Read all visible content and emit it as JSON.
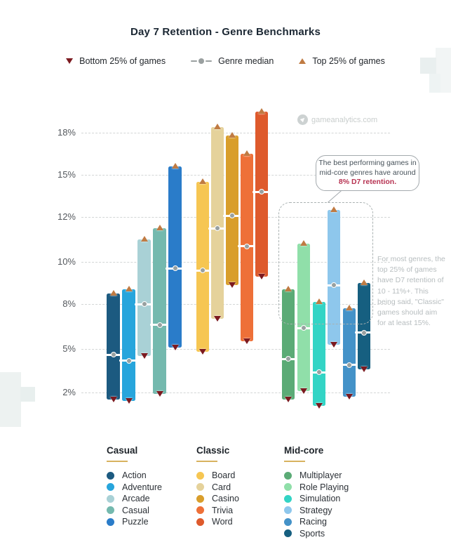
{
  "page": {
    "title": "Day 7 Retention - Genre Benchmarks"
  },
  "top_legend": {
    "bottom_label": "Bottom 25% of games",
    "median_label": "Genre median",
    "top_label": "Top 25% of games"
  },
  "watermark": {
    "text": "gameanalytics.com"
  },
  "callout": {
    "line1": "The best performing games in",
    "line2": "mid-core genres have around",
    "highlight": "8% D7 retention."
  },
  "side_note": {
    "text": "For most genres, the top 25% of games have D7 retention of 10 - 11%+. This being said, \"Classic\" games should aim for at least 15%."
  },
  "colors": {
    "top_marker": "#c07b43",
    "bottom_marker": "#7c1a20",
    "median_dot": "#98a0a0",
    "gridline": "#d3d6d6",
    "highlight_text": "#b73352",
    "legend_rule": "#d8b25f"
  },
  "chart_data": {
    "type": "bar",
    "subtype": "floating-range-bars (bottom 25% / median / top 25%)",
    "title": "Day 7 Retention - Genre Benchmarks",
    "xlabel": "",
    "ylabel": "",
    "y_axis": {
      "tick_labels": [
        "18%",
        "15%",
        "12%",
        "10%",
        "8%",
        "5%",
        "2%"
      ],
      "tick_values": [
        18,
        15,
        12,
        10,
        8,
        5,
        2
      ],
      "unit": "%",
      "grid": "dashed",
      "scale_note": "ticks evenly spaced as drawn (non-linear value spacing)"
    },
    "metrics": [
      "bottom25",
      "median",
      "top25"
    ],
    "legend_markers": {
      "bottom25": "dark-red triangle-down",
      "median": "white line with gray dot",
      "top25": "tan triangle-up"
    },
    "groups": [
      {
        "name": "Casual",
        "genres": [
          {
            "label": "Action",
            "color": "#1c5a80",
            "bottom25": 1.5,
            "median": 4.6,
            "top25": 8.5
          },
          {
            "label": "Adventure",
            "color": "#27a5dc",
            "bottom25": 1.4,
            "median": 4.2,
            "top25": 8.7
          },
          {
            "label": "Arcade",
            "color": "#a9d1d6",
            "bottom25": 4.5,
            "median": 8.0,
            "top25": 11.0
          },
          {
            "label": "Casual",
            "color": "#74b9ae",
            "bottom25": 1.9,
            "median": 6.6,
            "top25": 11.5
          },
          {
            "label": "Puzzle",
            "color": "#2a7cc9",
            "bottom25": 5.1,
            "median": 9.7,
            "top25": 15.6
          }
        ]
      },
      {
        "name": "Classic",
        "genres": [
          {
            "label": "Board",
            "color": "#f6c652",
            "bottom25": 4.8,
            "median": 9.6,
            "top25": 14.5
          },
          {
            "label": "Card",
            "color": "#e5d29b",
            "bottom25": 7.0,
            "median": 11.5,
            "top25": 18.4
          },
          {
            "label": "Casino",
            "color": "#d99e2b",
            "bottom25": 8.9,
            "median": 12.1,
            "top25": 17.8
          },
          {
            "label": "Trivia",
            "color": "#ee7038",
            "bottom25": 5.5,
            "median": 10.7,
            "top25": 16.5
          },
          {
            "label": "Word",
            "color": "#de5a2c",
            "bottom25": 9.3,
            "median": 13.8,
            "top25": 19.5
          }
        ]
      },
      {
        "name": "Mid-core",
        "genres": [
          {
            "label": "Multiplayer",
            "color": "#5bab76",
            "bottom25": 1.5,
            "median": 4.3,
            "top25": 8.7
          },
          {
            "label": "Role Playing",
            "color": "#90dfa9",
            "bottom25": 2.1,
            "median": 6.4,
            "top25": 10.8
          },
          {
            "label": "Simulation",
            "color": "#33d4c5",
            "bottom25": 1.1,
            "median": 3.4,
            "top25": 8.1
          },
          {
            "label": "Strategy",
            "color": "#8ec7ec",
            "bottom25": 5.3,
            "median": 8.9,
            "top25": 12.5
          },
          {
            "label": "Racing",
            "color": "#4492c8",
            "bottom25": 1.7,
            "median": 3.9,
            "top25": 7.7
          },
          {
            "label": "Sports",
            "color": "#165f80",
            "bottom25": 3.6,
            "median": 6.1,
            "top25": 9.0
          }
        ]
      }
    ]
  }
}
